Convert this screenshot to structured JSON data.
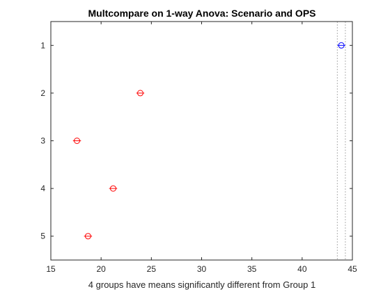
{
  "chart_data": {
    "type": "scatter",
    "title": "Multcompare on 1-way Anova: Scenario and OPS",
    "xlabel": "4 groups have means significantly different from Group 1",
    "ylabel": "",
    "xlim": [
      15,
      45
    ],
    "ylim": [
      0.5,
      5.5
    ],
    "y_reversed": true,
    "x_ticks": [
      15,
      20,
      25,
      30,
      35,
      40,
      45
    ],
    "y_ticks": [
      1,
      2,
      3,
      4,
      5
    ],
    "grid": false,
    "groups": [
      {
        "label": "1",
        "mean": 43.9,
        "lower": 43.5,
        "upper": 44.3,
        "color": "#0000ff",
        "selected": true
      },
      {
        "label": "2",
        "mean": 23.9,
        "lower": 23.5,
        "upper": 24.3,
        "color": "#ff0000",
        "selected": false
      },
      {
        "label": "3",
        "mean": 17.6,
        "lower": 17.2,
        "upper": 18.0,
        "color": "#ff0000",
        "selected": false
      },
      {
        "label": "4",
        "mean": 21.2,
        "lower": 20.8,
        "upper": 21.6,
        "color": "#ff0000",
        "selected": false
      },
      {
        "label": "5",
        "mean": 18.7,
        "lower": 18.3,
        "upper": 19.1,
        "color": "#ff0000",
        "selected": false
      }
    ],
    "reference_interval": [
      43.5,
      44.3
    ],
    "reference_line_color": "#b0b0b0"
  }
}
